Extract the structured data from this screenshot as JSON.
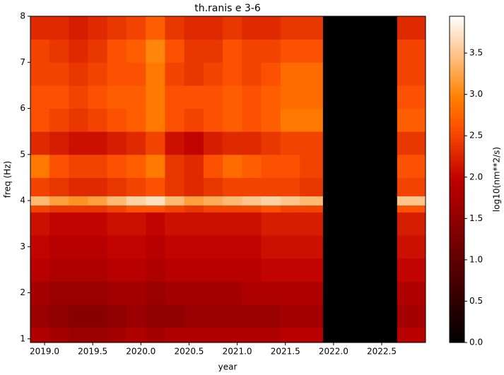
{
  "chart_data": {
    "type": "heatmap",
    "title": "th.ranis e 3-6",
    "x_label": "year",
    "y_label": "freq (Hz)",
    "colorbar_label": "log10(nm**2/s)",
    "colormap": "gist_heat",
    "x_edges": [
      2018.85,
      2019.05,
      2019.25,
      2019.45,
      2019.65,
      2019.85,
      2020.05,
      2020.25,
      2020.45,
      2020.65,
      2020.85,
      2021.05,
      2021.25,
      2021.45,
      2021.65,
      2021.89,
      2022.66,
      2022.95
    ],
    "y_edges": [
      0.92,
      1.25,
      1.75,
      2.25,
      2.75,
      3.25,
      3.75,
      3.9,
      4.1,
      4.5,
      5.0,
      5.5,
      6.0,
      6.5,
      7.0,
      7.5,
      8.0
    ],
    "z": [
      [
        1.8,
        1.7,
        1.6,
        1.6,
        1.7,
        1.8,
        1.7,
        1.8,
        1.8,
        1.8,
        1.8,
        1.8,
        1.8,
        1.9,
        1.9,
        0,
        1.9
      ],
      [
        1.6,
        1.5,
        1.4,
        1.4,
        1.5,
        1.6,
        1.5,
        1.5,
        1.6,
        1.6,
        1.6,
        1.6,
        1.6,
        1.7,
        1.7,
        0,
        1.7
      ],
      [
        1.7,
        1.6,
        1.6,
        1.6,
        1.7,
        1.7,
        1.6,
        1.7,
        1.7,
        1.7,
        1.7,
        1.8,
        1.8,
        1.8,
        1.8,
        0,
        1.8
      ],
      [
        1.9,
        1.8,
        1.8,
        1.8,
        1.9,
        1.9,
        1.8,
        1.9,
        1.9,
        1.9,
        1.9,
        1.9,
        2.0,
        2.0,
        2.0,
        0,
        2.0
      ],
      [
        2.0,
        1.9,
        1.9,
        1.9,
        2.0,
        2.0,
        1.9,
        2.0,
        2.0,
        2.0,
        2.0,
        2.0,
        2.1,
        2.1,
        2.1,
        0,
        2.1
      ],
      [
        2.1,
        2.0,
        2.0,
        2.0,
        2.1,
        2.1,
        2.0,
        2.1,
        2.1,
        2.1,
        2.1,
        2.1,
        2.2,
        2.2,
        2.2,
        0,
        2.2
      ],
      [
        2.5,
        2.4,
        2.4,
        2.4,
        2.5,
        2.6,
        2.6,
        2.5,
        2.4,
        2.5,
        2.5,
        2.5,
        2.6,
        2.5,
        2.5,
        0,
        2.6
      ],
      [
        3.4,
        3.2,
        3.1,
        3.2,
        3.4,
        3.6,
        3.7,
        3.4,
        3.2,
        3.3,
        3.4,
        3.5,
        3.6,
        3.5,
        3.4,
        0,
        3.5
      ],
      [
        2.5,
        2.4,
        2.3,
        2.3,
        2.4,
        2.5,
        2.6,
        2.4,
        2.3,
        2.4,
        2.5,
        2.5,
        2.5,
        2.5,
        2.4,
        0,
        2.5
      ],
      [
        2.9,
        2.6,
        2.5,
        2.5,
        2.6,
        2.7,
        2.9,
        2.4,
        2.3,
        2.6,
        2.8,
        2.7,
        2.6,
        2.6,
        2.5,
        0,
        2.6
      ],
      [
        2.3,
        2.2,
        2.1,
        2.1,
        2.2,
        2.3,
        2.5,
        2.1,
        2.0,
        2.2,
        2.3,
        2.3,
        2.4,
        2.5,
        2.5,
        0,
        2.4
      ],
      [
        2.6,
        2.5,
        2.4,
        2.5,
        2.6,
        2.7,
        2.9,
        2.6,
        2.5,
        2.6,
        2.7,
        2.6,
        2.7,
        2.9,
        2.9,
        0,
        2.7
      ],
      [
        2.6,
        2.6,
        2.5,
        2.6,
        2.7,
        2.7,
        2.9,
        2.6,
        2.6,
        2.6,
        2.7,
        2.6,
        2.7,
        2.8,
        2.8,
        0,
        2.6
      ],
      [
        2.5,
        2.5,
        2.4,
        2.5,
        2.6,
        2.6,
        2.9,
        2.5,
        2.4,
        2.5,
        2.6,
        2.5,
        2.6,
        2.8,
        2.8,
        0,
        2.5
      ],
      [
        2.5,
        2.4,
        2.3,
        2.4,
        2.6,
        2.7,
        3.0,
        2.6,
        2.4,
        2.4,
        2.6,
        2.5,
        2.5,
        2.6,
        2.6,
        0,
        2.5
      ],
      [
        2.3,
        2.3,
        2.2,
        2.3,
        2.4,
        2.5,
        2.7,
        2.4,
        2.3,
        2.3,
        2.4,
        2.3,
        2.3,
        2.4,
        2.4,
        0,
        2.3
      ]
    ],
    "xlim": [
      2018.853,
      2022.955
    ],
    "ylim": [
      0.92,
      8
    ],
    "xticks": [
      {
        "value": 2019,
        "label": "2019.0"
      },
      2019.5,
      {
        "value": 2020,
        "label": "2020.0"
      },
      2020.5,
      {
        "value": 2021,
        "label": "2021.0"
      },
      2021.5,
      {
        "value": 2022,
        "label": "2022.0"
      },
      2022.5
    ],
    "yticks": [
      1,
      2,
      3,
      4,
      5,
      6,
      7,
      8
    ],
    "clim": [
      0,
      3.945
    ],
    "cticks": [
      {
        "value": 0,
        "label": "0.0"
      },
      0.5,
      {
        "value": 1,
        "label": "1.0"
      },
      1.5,
      {
        "value": 2,
        "label": "2.0"
      },
      2.5,
      {
        "value": 3,
        "label": "3.0"
      },
      3.5
    ]
  }
}
